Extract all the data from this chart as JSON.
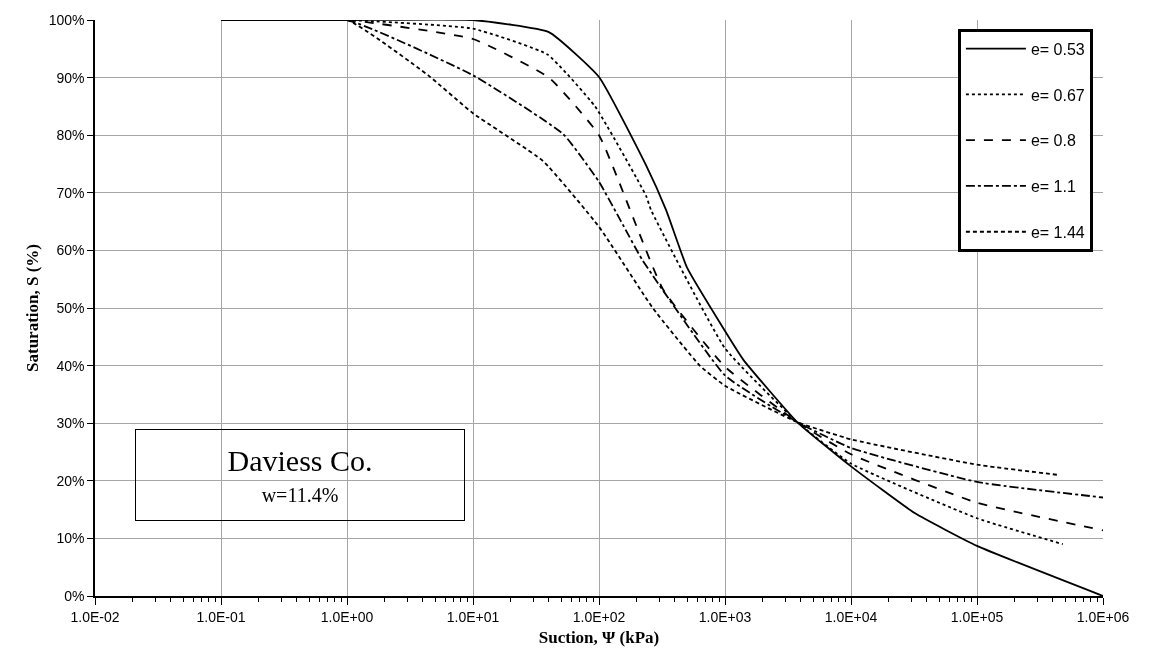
{
  "chart_data": {
    "type": "line",
    "xlabel": "Suction, Ψ (kPa)",
    "ylabel": "Saturation, S (%)",
    "log": "x",
    "xlim": [
      0.01,
      1000000
    ],
    "xticks": [
      {
        "value": 0.01,
        "label": "1.0E-02"
      },
      {
        "value": 0.1,
        "label": "1.0E-01"
      },
      {
        "value": 1,
        "label": "1.0E+00"
      },
      {
        "value": 10,
        "label": "1.0E+01"
      },
      {
        "value": 100,
        "label": "1.0E+02"
      },
      {
        "value": 1000,
        "label": "1.0E+03"
      },
      {
        "value": 10000,
        "label": "1.0E+04"
      },
      {
        "value": 100000,
        "label": "1.0E+05"
      },
      {
        "value": 1000000,
        "label": "1.0E+06"
      }
    ],
    "ylim": [
      0,
      100
    ],
    "yticks": [
      {
        "value": 0,
        "label": "0%"
      },
      {
        "value": 10,
        "label": "10%"
      },
      {
        "value": 20,
        "label": "20%"
      },
      {
        "value": 30,
        "label": "30%"
      },
      {
        "value": 40,
        "label": "40%"
      },
      {
        "value": 50,
        "label": "50%"
      },
      {
        "value": 60,
        "label": "60%"
      },
      {
        "value": 70,
        "label": "70%"
      },
      {
        "value": 80,
        "label": "80%"
      },
      {
        "value": 90,
        "label": "90%"
      },
      {
        "value": 100,
        "label": "100%"
      }
    ],
    "grid": true,
    "legend": "top right",
    "marker": "none",
    "annotations": [
      "Daviess Co.",
      "w=11.4%"
    ],
    "series": [
      {
        "name": "e= 0.53",
        "color": "#000000",
        "line_style": "solid",
        "x": [
          0.1,
          1,
          10,
          40,
          100,
          236,
          341,
          500,
          1000,
          1400,
          3740,
          10000,
          32000,
          100000,
          1000000
        ],
        "values": [
          100,
          100,
          100,
          97.9,
          90.1,
          74.8,
          67,
          57,
          46,
          41,
          30.2,
          22.5,
          14.4,
          8.7,
          0
        ]
      },
      {
        "name": "e= 0.67",
        "color": "#000000",
        "line_style": "dotted",
        "x": [
          0.1,
          1,
          10,
          39,
          93,
          236,
          259,
          1000,
          3740,
          10000,
          100000,
          480000
        ],
        "values": [
          100,
          100,
          98.5,
          94,
          85,
          69.5,
          67,
          43,
          30.2,
          23,
          13.5,
          9
        ]
      },
      {
        "name": "e= 0.8",
        "color": "#000000",
        "line_style": "dashed",
        "x": [
          0.1,
          1,
          10,
          40,
          100,
          321,
          1000,
          3740,
          10000,
          100000,
          1000000
        ],
        "values": [
          100,
          100,
          96.7,
          90,
          80,
          53.3,
          39.8,
          30.2,
          24.6,
          16.2,
          11.4
        ]
      },
      {
        "name": "e= 1.1",
        "color": "#000000",
        "line_style": "dashdot",
        "x": [
          0.1,
          1,
          10,
          52,
          100,
          150,
          220,
          1000,
          3740,
          10000,
          100000,
          1000000
        ],
        "values": [
          100,
          100,
          90.4,
          80.2,
          71.9,
          65,
          58.4,
          38.3,
          30.2,
          25.7,
          19.8,
          17.1
        ]
      },
      {
        "name": "e= 1.44",
        "color": "#000000",
        "line_style": "short dashed",
        "x": [
          0.1,
          1,
          4.4,
          10,
          36,
          100,
          267,
          631,
          1000,
          3740,
          10000,
          100000,
          450000
        ],
        "values": [
          100,
          100,
          90.4,
          83.8,
          75.5,
          64.1,
          50,
          40,
          36.5,
          30.2,
          27.2,
          22.8,
          21
        ]
      }
    ]
  }
}
